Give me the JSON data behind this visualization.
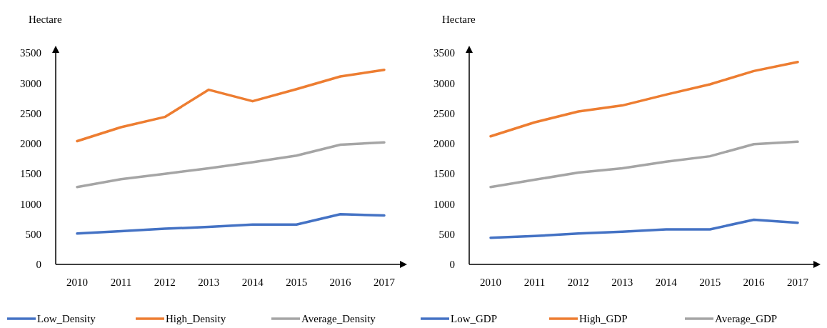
{
  "chart_data": [
    {
      "type": "line",
      "ylabel": "Hectare",
      "categories": [
        "2010",
        "2011",
        "2012",
        "2013",
        "2014",
        "2015",
        "2016",
        "2017"
      ],
      "ylim": [
        0,
        3500
      ],
      "yticks": [
        0,
        500,
        1000,
        1500,
        2000,
        2500,
        3000,
        3500
      ],
      "legend": "bottom",
      "grid": false,
      "series": [
        {
          "name": "Low_Density",
          "color": "#4472c4",
          "values": [
            510,
            550,
            590,
            620,
            660,
            660,
            830,
            810
          ]
        },
        {
          "name": "High_Density",
          "color": "#ed7d31",
          "values": [
            2040,
            2270,
            2440,
            2890,
            2700,
            2900,
            3110,
            3220
          ]
        },
        {
          "name": "Average_Density",
          "color": "#a5a5a5",
          "values": [
            1280,
            1410,
            1500,
            1590,
            1690,
            1800,
            1980,
            2020
          ]
        }
      ]
    },
    {
      "type": "line",
      "ylabel": "Hectare",
      "categories": [
        "2010",
        "2011",
        "2012",
        "2013",
        "2014",
        "2015",
        "2016",
        "2017"
      ],
      "ylim": [
        0,
        3500
      ],
      "yticks": [
        0,
        500,
        1000,
        1500,
        2000,
        2500,
        3000,
        3500
      ],
      "legend": "bottom",
      "grid": false,
      "series": [
        {
          "name": "Low_GDP",
          "color": "#4472c4",
          "values": [
            440,
            470,
            510,
            540,
            580,
            580,
            740,
            690
          ]
        },
        {
          "name": "High_GDP",
          "color": "#ed7d31",
          "values": [
            2120,
            2350,
            2530,
            2630,
            2810,
            2980,
            3200,
            3350
          ]
        },
        {
          "name": "Average_GDP",
          "color": "#a5a5a5",
          "values": [
            1280,
            1400,
            1520,
            1590,
            1700,
            1790,
            1990,
            2030
          ]
        }
      ]
    }
  ]
}
